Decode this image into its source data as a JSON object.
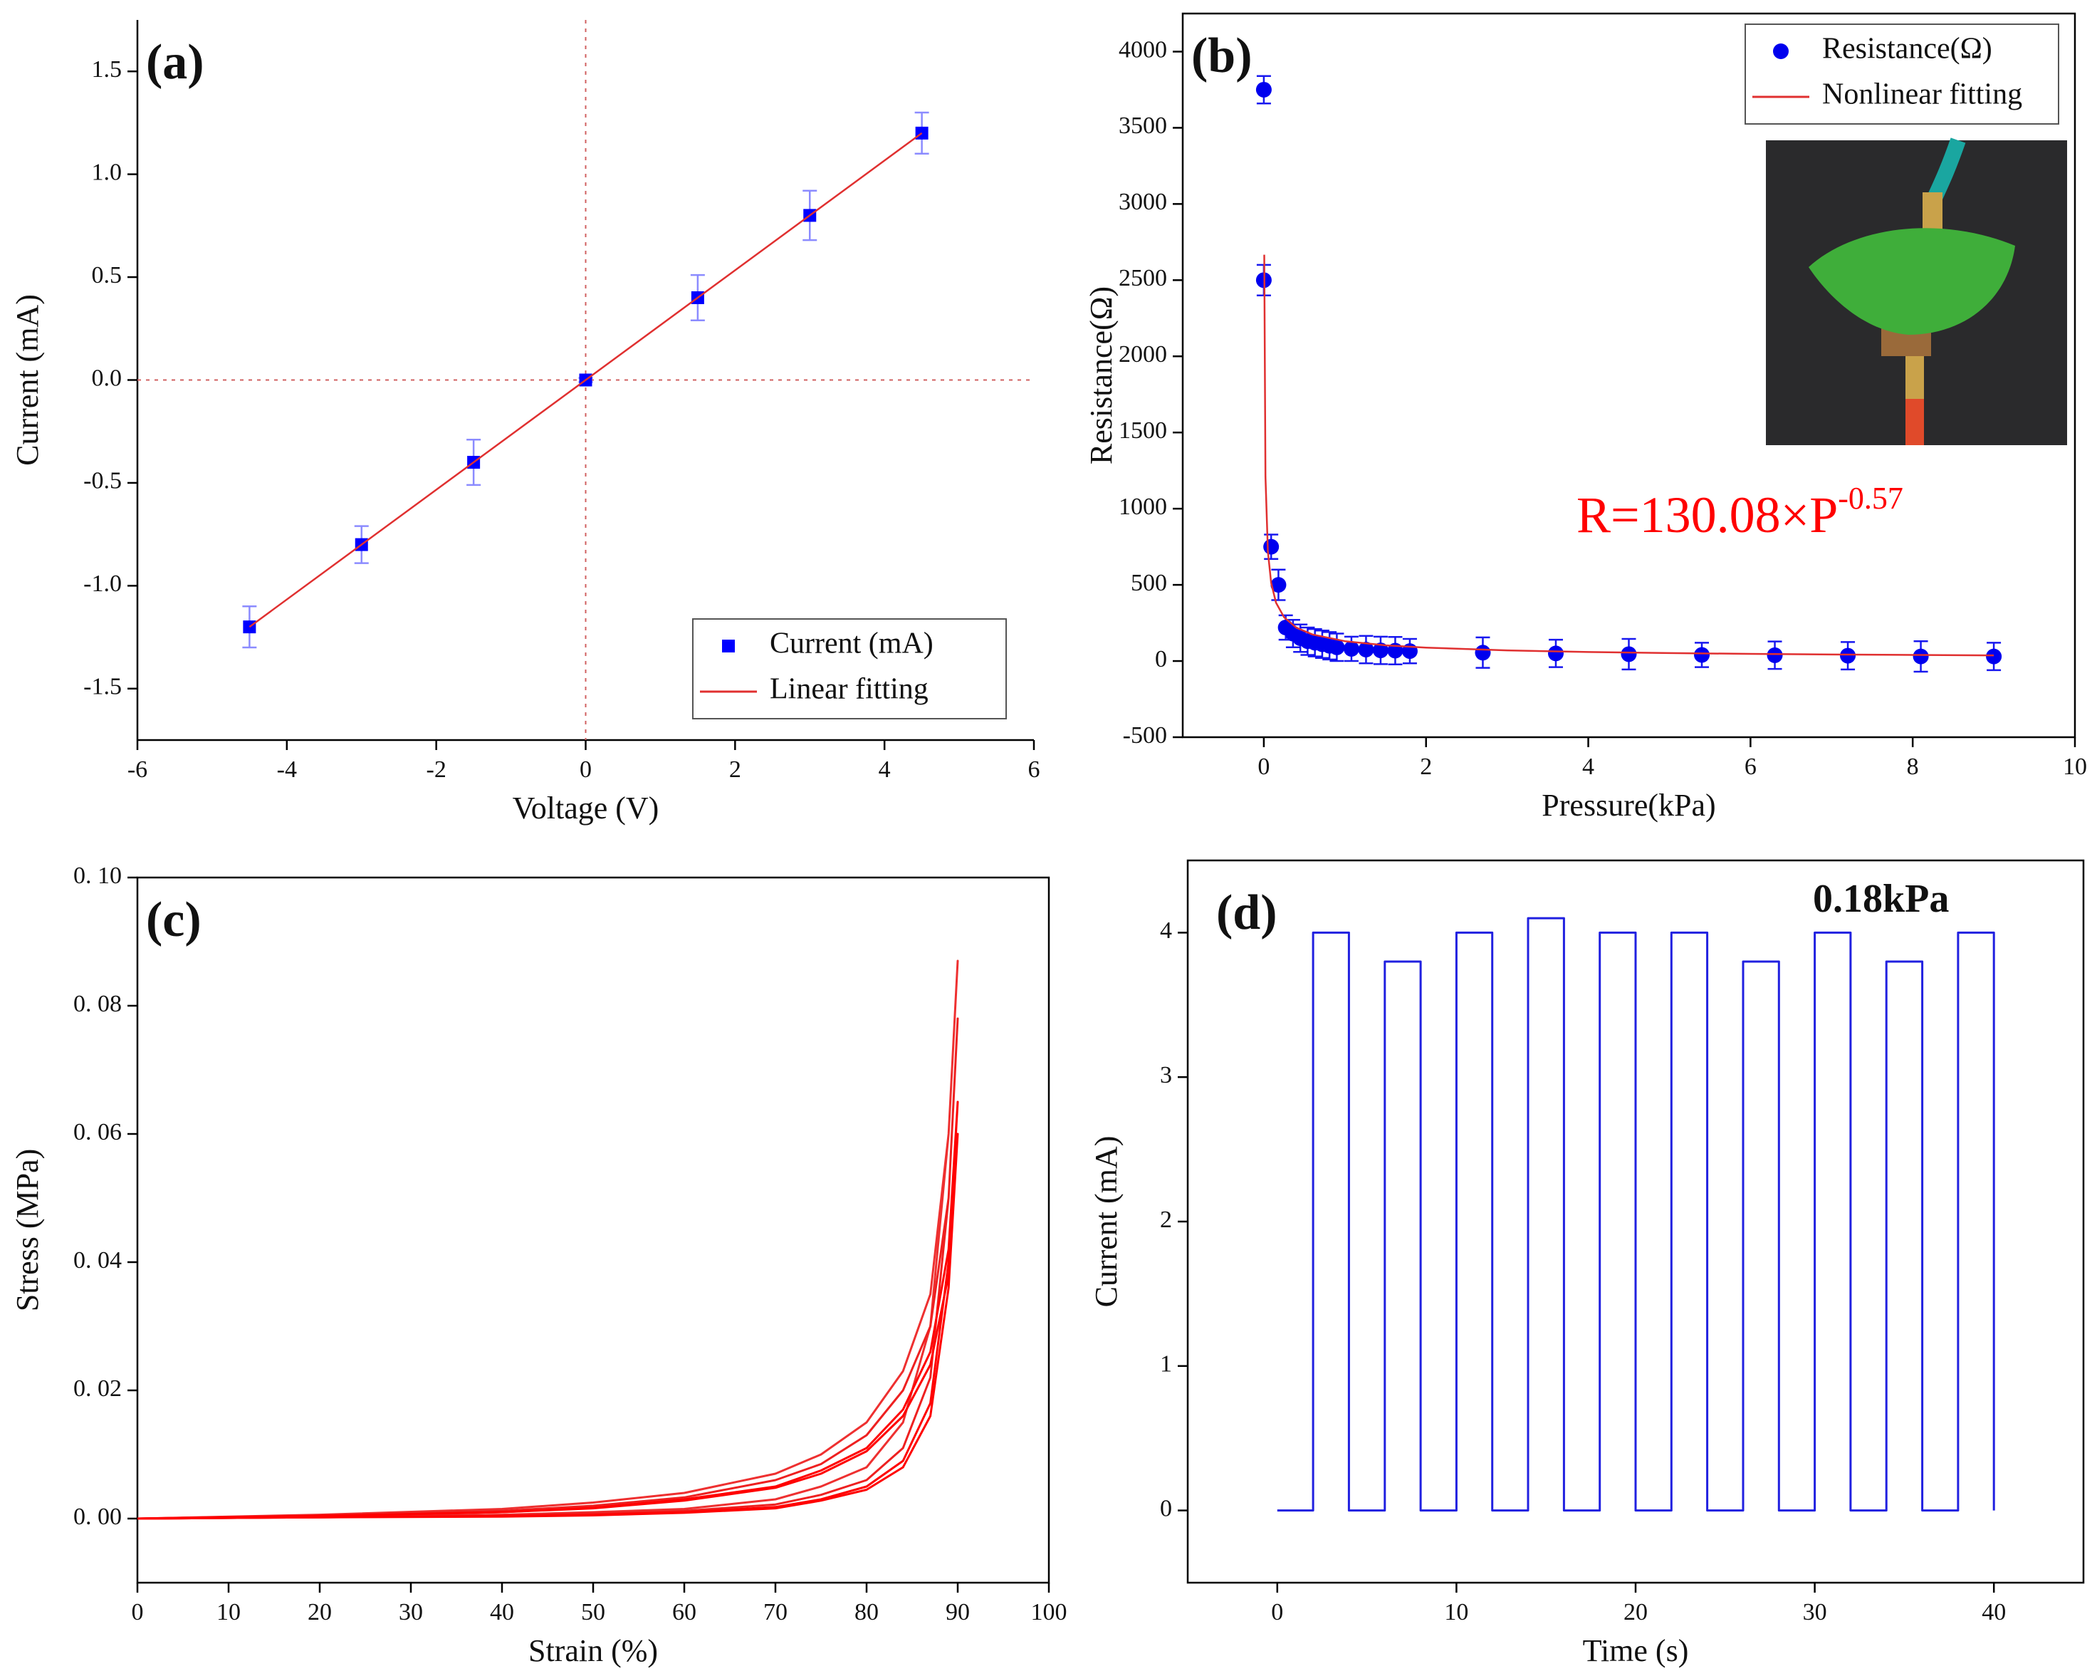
{
  "chart_data": [
    {
      "type": "scatter",
      "label": "(a)",
      "x_label": "Voltage (V)",
      "y_label": "Current (mA)",
      "xlim": [
        -6,
        6
      ],
      "xticks": [
        -6,
        -4,
        -2,
        0,
        2,
        4,
        6
      ],
      "ylim": [
        -1.75,
        1.75
      ],
      "yticks": [
        -1.5,
        {
          "value": -1,
          "label": "-1.0"
        },
        -0.5,
        {
          "value": 0,
          "label": "0.0"
        },
        0.5,
        {
          "value": 1,
          "label": "1.0"
        },
        1.5
      ],
      "zero_lines": true,
      "box": false,
      "legend": "lower right",
      "series": [
        {
          "name": "Current (mA)",
          "color": "#0000ff",
          "marker": "square",
          "x": [
            -4.5,
            -3,
            -1.5,
            0,
            1.5,
            3,
            4.5
          ],
          "values": [
            -1.2,
            -0.8,
            -0.4,
            0,
            0.4,
            0.8,
            1.2
          ],
          "errors": [
            0.1,
            0.09,
            0.11,
            0.01,
            0.11,
            0.12,
            0.1
          ]
        },
        {
          "name": "Linear fitting",
          "color": "#e03030",
          "x": [
            -4.5,
            4.5
          ],
          "values": [
            -1.2,
            1.2
          ]
        }
      ]
    },
    {
      "type": "scatter",
      "label": "(b)",
      "x_label": "Pressure(kPa)",
      "y_label": "Resistance(Ω)",
      "xlim": [
        -1,
        10
      ],
      "xticks": [
        0,
        2,
        4,
        6,
        8,
        10
      ],
      "ylim": [
        -500,
        4250
      ],
      "yticks": [
        -500,
        0,
        500,
        1000,
        1500,
        2000,
        2500,
        3000,
        3500,
        4000
      ],
      "box": true,
      "legend": "upper right",
      "formula": {
        "text": "R=130.08×P",
        "superscript": "-0.57",
        "color": "#ff0000"
      },
      "series": [
        {
          "name": "Resistance(Ω)",
          "color": "#0000ee",
          "marker": "circle",
          "x": [
            0,
            0,
            0.09,
            0.18,
            0.27,
            0.36,
            0.45,
            0.54,
            0.63,
            0.72,
            0.81,
            0.9,
            1.08,
            1.26,
            1.44,
            1.62,
            1.8,
            2.7,
            3.6,
            4.5,
            5.4,
            6.3,
            7.2,
            8.1,
            9
          ],
          "values": [
            3750,
            2500,
            750,
            500,
            220,
            180,
            150,
            130,
            120,
            110,
            100,
            90,
            80,
            75,
            70,
            68,
            65,
            55,
            50,
            45,
            40,
            38,
            35,
            30,
            30
          ],
          "errors": [
            90,
            100,
            80,
            100,
            80,
            90,
            90,
            90,
            90,
            90,
            90,
            90,
            80,
            90,
            90,
            90,
            80,
            100,
            90,
            100,
            80,
            90,
            90,
            100,
            90
          ]
        },
        {
          "name": "Nonlinear fitting",
          "color": "#e03030",
          "x": [
            0.005,
            0.02,
            0.05,
            0.09,
            0.15,
            0.25,
            0.4,
            0.6,
            1,
            1.5,
            2,
            3,
            4,
            5,
            6,
            7,
            8,
            9
          ],
          "values": [
            2667,
            1210,
            718,
            513,
            383,
            287,
            219,
            174,
            130,
            103,
            88,
            70,
            59,
            52,
            47,
            43,
            40,
            37
          ]
        }
      ]
    },
    {
      "type": "line",
      "label": "(c)",
      "x_label": "Strain (%)",
      "y_label": "Stress (MPa)",
      "xlim": [
        0,
        100
      ],
      "xticks": [
        0,
        10,
        20,
        30,
        40,
        50,
        60,
        70,
        80,
        90,
        100
      ],
      "ylim": [
        -0.01,
        0.1
      ],
      "yticks": [
        {
          "value": 0,
          "label": "0. 00"
        },
        {
          "value": 0.02,
          "label": "0. 02"
        },
        {
          "value": 0.04,
          "label": "0. 04"
        },
        {
          "value": 0.06,
          "label": "0. 06"
        },
        {
          "value": 0.08,
          "label": "0. 08"
        },
        {
          "value": 0.1,
          "label": "0. 10"
        }
      ],
      "box": true,
      "series": [
        {
          "color": "#ee3030",
          "x": [
            0,
            20,
            40,
            50,
            60,
            70,
            75,
            80,
            84,
            87,
            89,
            90,
            89,
            87,
            84,
            80,
            75,
            70,
            60,
            50,
            40,
            20,
            0
          ],
          "values": [
            0,
            0.0006,
            0.0015,
            0.0025,
            0.004,
            0.007,
            0.01,
            0.015,
            0.023,
            0.035,
            0.06,
            0.087,
            0.06,
            0.03,
            0.015,
            0.008,
            0.005,
            0.003,
            0.0015,
            0.001,
            0.0006,
            0.0003,
            0
          ]
        },
        {
          "color": "#ee2020",
          "x": [
            0,
            20,
            40,
            50,
            60,
            70,
            75,
            80,
            84,
            87,
            89,
            90,
            89,
            87,
            84,
            80,
            75,
            70,
            60,
            50,
            40,
            20,
            0
          ],
          "values": [
            0,
            0.0005,
            0.0012,
            0.002,
            0.0033,
            0.006,
            0.0085,
            0.013,
            0.02,
            0.03,
            0.05,
            0.078,
            0.05,
            0.022,
            0.011,
            0.006,
            0.0037,
            0.0022,
            0.0012,
            0.0008,
            0.0005,
            0.0002,
            0
          ]
        },
        {
          "color": "#ff0000",
          "x": [
            0,
            20,
            40,
            50,
            60,
            70,
            75,
            80,
            84,
            87,
            89,
            90,
            89,
            87,
            84,
            80,
            75,
            70,
            60,
            50,
            40,
            20,
            0
          ],
          "values": [
            0,
            0.0004,
            0.001,
            0.0017,
            0.003,
            0.005,
            0.0075,
            0.011,
            0.017,
            0.026,
            0.042,
            0.065,
            0.04,
            0.018,
            0.009,
            0.005,
            0.003,
            0.0018,
            0.001,
            0.0006,
            0.0004,
            0.0002,
            0
          ]
        },
        {
          "color": "#ff0000",
          "x": [
            0,
            20,
            40,
            50,
            60,
            70,
            75,
            80,
            84,
            87,
            89,
            90,
            89,
            87,
            84,
            80,
            75,
            70,
            60,
            50,
            40,
            20,
            0
          ],
          "values": [
            0,
            0.0004,
            0.001,
            0.0016,
            0.0028,
            0.0048,
            0.007,
            0.0105,
            0.016,
            0.024,
            0.038,
            0.06,
            0.036,
            0.016,
            0.008,
            0.0045,
            0.0028,
            0.0016,
            0.0009,
            0.0005,
            0.0003,
            0.0002,
            0
          ]
        }
      ]
    },
    {
      "type": "line",
      "label": "(d)",
      "x_label": "Time (s)",
      "y_label": "Current (mA)",
      "xlim": [
        -5,
        45
      ],
      "xticks": [
        0,
        10,
        20,
        30,
        40
      ],
      "ylim": [
        -0.5,
        4.5
      ],
      "yticks": [
        0,
        1,
        2,
        3,
        4
      ],
      "box": true,
      "annotation": "0.18kPa",
      "series": [
        {
          "color": "#2020e0",
          "x": [
            0,
            2,
            2,
            4,
            4,
            6,
            6,
            8,
            8,
            10,
            10,
            12,
            12,
            14,
            14,
            16,
            16,
            18,
            18,
            20,
            20,
            22,
            22,
            24,
            24,
            26,
            26,
            28,
            28,
            30,
            30,
            32,
            32,
            34,
            34,
            36,
            36,
            38,
            38,
            40,
            40
          ],
          "values": [
            0,
            0,
            4,
            4,
            0,
            0,
            3.8,
            3.8,
            0,
            0,
            4,
            4,
            0,
            0,
            4.1,
            4.1,
            0,
            0,
            4,
            4,
            0,
            0,
            4,
            4,
            0,
            0,
            3.8,
            3.8,
            0,
            0,
            4,
            4,
            0,
            0,
            3.8,
            3.8,
            0,
            0,
            4,
            4,
            0
          ]
        }
      ]
    }
  ]
}
